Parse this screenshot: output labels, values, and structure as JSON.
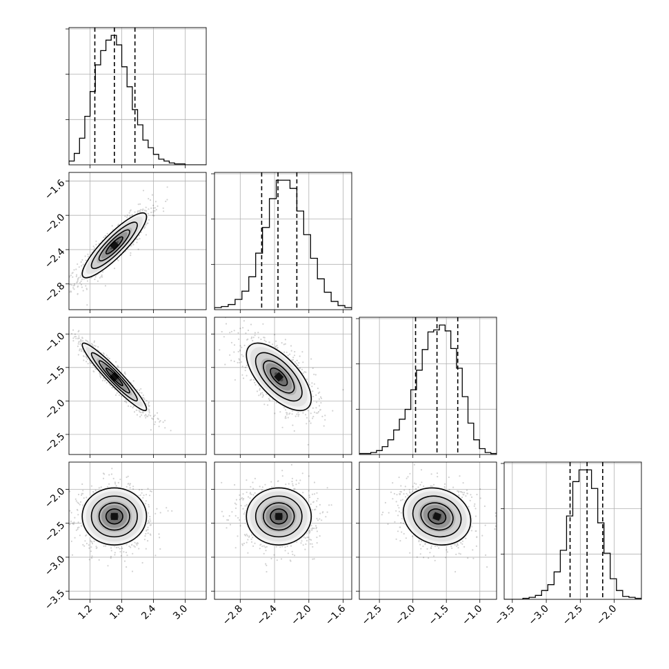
{
  "chart_data": {
    "type": "corner",
    "parameters": 4,
    "ranges": [
      [
        0.8,
        3.4
      ],
      [
        -3.1,
        -1.5
      ],
      [
        -2.8,
        -0.75
      ],
      [
        -3.62,
        -1.6
      ]
    ],
    "ticks": [
      {
        "values": [
          1.2,
          1.8,
          2.4,
          3.0
        ],
        "labels": [
          "1.2",
          "1.8",
          "2.4",
          "3.0"
        ]
      },
      {
        "values": [
          -2.8,
          -2.4,
          -2.0,
          -1.6
        ],
        "labels": [
          "−2.8",
          "−2.4",
          "−2.0",
          "−1.6"
        ]
      },
      {
        "values": [
          -2.5,
          -2.0,
          -1.5,
          -1.0
        ],
        "labels": [
          "−2.5",
          "−2.0",
          "−1.5",
          "−1.0"
        ]
      },
      {
        "values": [
          -3.5,
          -3.0,
          -2.5,
          -2.0
        ],
        "labels": [
          "−3.5",
          "−3.0",
          "−2.5",
          "−2.0"
        ]
      }
    ],
    "quantiles": [
      [
        1.29,
        1.66,
        2.05
      ],
      [
        -2.55,
        -2.36,
        -2.14
      ],
      [
        -1.96,
        -1.64,
        -1.33
      ],
      [
        -2.65,
        -2.4,
        -2.17
      ]
    ],
    "histograms": [
      {
        "edges": [
          0.8,
          3.4
        ],
        "counts": [
          4,
          12,
          28,
          51,
          77,
          105,
          120,
          131,
          136,
          126,
          103,
          82,
          58,
          42,
          26,
          18,
          11,
          6,
          4,
          2,
          1,
          1,
          0,
          0,
          0,
          0
        ]
      },
      {
        "edges": [
          -3.1,
          -1.5
        ],
        "counts": [
          2,
          3,
          5,
          10,
          18,
          32,
          55,
          80,
          108,
          126,
          126,
          118,
          96,
          73,
          50,
          30,
          17,
          8,
          4,
          2
        ]
      },
      {
        "edges": [
          -2.8,
          -0.75
        ],
        "counts": [
          1,
          1,
          2,
          4,
          8,
          15,
          25,
          36,
          46,
          66,
          86,
          107,
          125,
          127,
          132,
          126,
          108,
          88,
          59,
          32,
          15,
          6,
          2,
          1
        ]
      },
      {
        "edges": [
          -3.62,
          -1.6
        ],
        "counts": [
          0,
          0,
          0,
          1,
          2,
          4,
          9,
          15,
          28,
          50,
          85,
          120,
          132,
          132,
          113,
          78,
          47,
          21,
          9,
          3,
          2,
          1
        ]
      }
    ],
    "joint": {
      "means": [
        1.66,
        -2.35,
        -1.64,
        -2.4
      ],
      "sds": [
        0.29,
        0.18,
        0.24,
        0.2
      ],
      "correlations": [
        [
          1,
          0.88,
          -0.95,
          0.0
        ],
        [
          0.88,
          1,
          -0.65,
          0.0
        ],
        [
          -0.95,
          -0.65,
          1,
          -0.15
        ],
        [
          0.0,
          0.0,
          -0.15,
          1
        ]
      ]
    },
    "grid": true,
    "title": "",
    "xlabel": "",
    "ylabel": ""
  }
}
